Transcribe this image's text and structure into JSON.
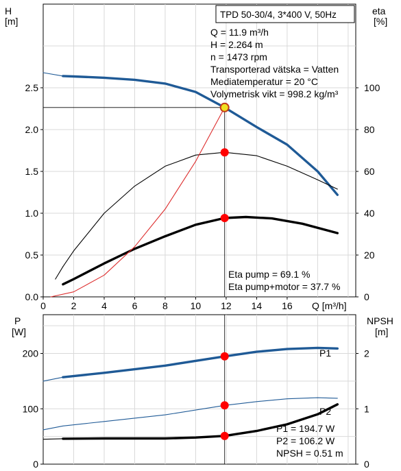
{
  "chart_data": [
    {
      "type": "line",
      "title": "TPD 50-30/4, 3*400 V, 50Hz",
      "xlabel": "Q [m³/h]",
      "ylabel_left": "H\n[m]",
      "ylabel_right": "eta\n[%]",
      "x_ticks": [
        "0",
        "2",
        "4",
        "6",
        "8",
        "10",
        "12",
        "14",
        "16"
      ],
      "y_left_ticks": [
        "0.0",
        "0.5",
        "1.0",
        "1.5",
        "2.0",
        "2.5"
      ],
      "y_right_ticks": [
        "0",
        "20",
        "40",
        "60",
        "80",
        "100"
      ],
      "xlim": [
        0,
        20.5
      ],
      "ylim_left": [
        0,
        3.5
      ],
      "ylim_right": [
        0,
        140
      ],
      "grid": true,
      "info_lines": [
        "Q = 11.9 m³/h",
        "H = 2.264 m",
        "n = 1473 rpm",
        "Transporterad vätska = Vatten",
        "Mediatemperatur = 20 °C",
        "Volymetrisk vikt = 998.2 kg/m³"
      ],
      "eta_lines": [
        "Eta pump = 69.1 %",
        "Eta pump+motor = 37.7 %"
      ],
      "series": [
        {
          "color": "#1f5a96",
          "thick": true,
          "axis": "left",
          "x": [
            1.3,
            2,
            4,
            6,
            8,
            10,
            11.9,
            14,
            16,
            18,
            19.3
          ],
          "y": [
            2.64,
            2.635,
            2.62,
            2.595,
            2.55,
            2.45,
            2.264,
            2.03,
            1.82,
            1.5,
            1.22
          ]
        },
        {
          "color": "#1f5a96",
          "thick": false,
          "axis": "left",
          "x": [
            0,
            1.3
          ],
          "y": [
            2.68,
            2.64
          ]
        },
        {
          "color": "#000000",
          "thick": false,
          "axis": "right",
          "x": [
            1.3,
            2,
            4,
            6,
            8,
            10,
            11.9,
            14,
            16,
            18,
            19.3
          ],
          "y": [
            14.5,
            22,
            40,
            53,
            62.5,
            67.8,
            69.1,
            67.5,
            62.5,
            56,
            51.5
          ]
        },
        {
          "color": "#000000",
          "thick": false,
          "axis": "right",
          "x": [
            0.8,
            1.3
          ],
          "y": [
            8.5,
            14.5
          ]
        },
        {
          "color": "#000000",
          "thick": true,
          "axis": "right",
          "x": [
            1.3,
            2,
            4,
            6,
            8,
            10,
            11.9,
            13.3,
            15,
            17,
            19.3
          ],
          "y": [
            6,
            8.5,
            16,
            23,
            29,
            34.5,
            37.7,
            38.2,
            37.5,
            35,
            30.5
          ]
        },
        {
          "color": "#dd2c2c",
          "thick": false,
          "axis": "left",
          "x": [
            0.5,
            2,
            4,
            6,
            8,
            10,
            11.9
          ],
          "y": [
            0.0,
            0.06,
            0.26,
            0.6,
            1.05,
            1.62,
            2.264
          ]
        }
      ],
      "guide_h": 2.264,
      "op_points": [
        {
          "x": 11.9,
          "y": 2.264,
          "axis": "left",
          "color": "#f0e020"
        },
        {
          "x": 11.9,
          "y": 69.1,
          "axis": "right",
          "color": "#ff0000"
        },
        {
          "x": 11.9,
          "y": 37.7,
          "axis": "right",
          "color": "#ff0000"
        }
      ]
    },
    {
      "type": "line",
      "ylabel_left": "P\n[W]",
      "ylabel_right": "NPSH\n[m]",
      "y_left_ticks": [
        "0",
        "100",
        "200"
      ],
      "y_right_ticks": [
        "0",
        "1",
        "2"
      ],
      "xlim": [
        0,
        20.5
      ],
      "ylim_left": [
        0,
        270
      ],
      "ylim_right": [
        0,
        2.7
      ],
      "grid": true,
      "series_labels": [
        "P1",
        "P2"
      ],
      "info_lines": [
        "P1 = 194.7 W",
        "P2 = 106.2 W",
        "NPSH = 0.51 m"
      ],
      "series": [
        {
          "name": "P1",
          "color": "#1f5a96",
          "thick": true,
          "axis": "left",
          "x": [
            1.3,
            4,
            8,
            11.9,
            14,
            16,
            18,
            19.3
          ],
          "y": [
            157,
            165,
            178,
            194.7,
            203,
            208,
            210,
            209
          ]
        },
        {
          "color": "#1f5a96",
          "thick": false,
          "axis": "left",
          "x": [
            0,
            1.3
          ],
          "y": [
            150,
            157
          ]
        },
        {
          "name": "P2",
          "color": "#1f5a96",
          "thick": false,
          "axis": "left",
          "x": [
            0,
            1.3,
            4,
            8,
            11.9,
            14,
            16,
            18,
            19.3
          ],
          "y": [
            62,
            69,
            77,
            89,
            106.2,
            113,
            118,
            120,
            119
          ]
        },
        {
          "color": "#000000",
          "thick": true,
          "axis": "right",
          "x": [
            1.3,
            4,
            8,
            10,
            11.9,
            14,
            16,
            18,
            19.3
          ],
          "y": [
            0.46,
            0.465,
            0.465,
            0.48,
            0.51,
            0.6,
            0.72,
            0.9,
            1.08
          ]
        },
        {
          "color": "#000000",
          "thick": false,
          "axis": "right",
          "x": [
            0,
            1.3
          ],
          "y": [
            0.45,
            0.46
          ]
        }
      ],
      "op_points": [
        {
          "x": 11.9,
          "y": 194.7,
          "axis": "left",
          "color": "#ff0000"
        },
        {
          "x": 11.9,
          "y": 106.2,
          "axis": "left",
          "color": "#ff0000"
        },
        {
          "x": 11.9,
          "y": 0.51,
          "axis": "right",
          "color": "#ff0000"
        }
      ]
    }
  ]
}
